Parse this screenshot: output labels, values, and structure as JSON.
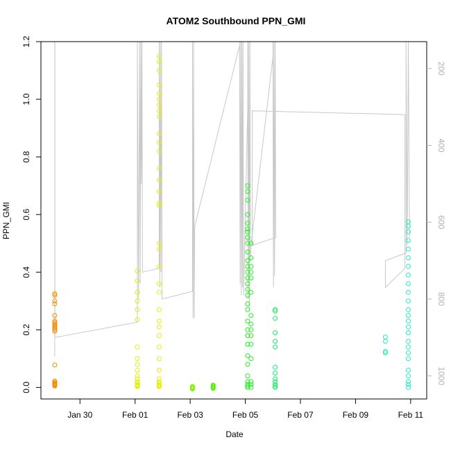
{
  "chart_data": {
    "type": "scatter",
    "title": "ATOM2 Southbound PPN_GMI",
    "xlabel": "Date",
    "ylabel": "PPN_GMI",
    "xlim": [
      "2024-01-28T14:00",
      "2024-02-11T14:00"
    ],
    "ylim": [
      -0.04,
      1.2
    ],
    "yticks": [
      0.0,
      0.2,
      0.4,
      0.6,
      0.8,
      1.0,
      1.2
    ],
    "ytick_labels": [
      "0.0",
      "0.2",
      "0.4",
      "0.6",
      "0.8",
      "1.0",
      "1.2"
    ],
    "xticks": [
      "2024-01-30",
      "2024-02-01",
      "2024-02-03",
      "2024-02-05",
      "2024-02-07",
      "2024-02-09",
      "2024-02-11"
    ],
    "xtick_labels": [
      "Jan 30",
      "Feb 01",
      "Feb 03",
      "Feb 05",
      "Feb 07",
      "Feb 09",
      "Feb 11"
    ],
    "y2_axis": {
      "reversed": true,
      "ylim": [
        130,
        1060
      ],
      "ticks": [
        200,
        400,
        600,
        800,
        1000
      ],
      "tick_labels": [
        "200",
        "400",
        "600",
        "800",
        "1000"
      ],
      "color": "#b0b0b0"
    },
    "series": [
      {
        "color": "#f28c00",
        "x": "2024-01-29T02:00",
        "y": [
          0.005,
          0.008,
          0.01,
          0.012,
          0.015,
          0.018,
          0.022,
          0.078,
          0.195,
          0.2,
          0.205,
          0.21,
          0.215,
          0.22,
          0.225,
          0.23,
          0.25,
          0.29,
          0.3,
          0.32,
          0.325
        ]
      },
      {
        "color": "#ddf200",
        "x": "2024-02-01T02:00",
        "y": [
          0.003,
          0.005,
          0.008,
          0.01,
          0.015,
          0.02,
          0.03,
          0.04,
          0.06,
          0.08,
          0.1,
          0.14,
          0.235,
          0.27,
          0.3,
          0.33,
          0.37,
          0.405
        ]
      },
      {
        "color": "#e6f200",
        "x": "2024-02-01T21:00",
        "y": [
          0.003,
          0.005,
          0.008,
          0.01,
          0.015,
          0.02,
          0.03,
          0.06,
          0.1,
          0.14,
          0.18,
          0.21,
          0.23,
          0.27,
          0.33,
          0.36,
          0.42,
          0.48,
          0.5,
          0.63,
          0.64,
          0.68,
          0.72,
          0.76,
          0.82,
          0.85,
          0.88,
          0.94,
          0.96,
          0.98,
          1.0,
          1.02,
          1.05,
          1.1,
          1.13,
          1.15
        ]
      },
      {
        "color": "#80f000",
        "x": "2024-02-03T02:00",
        "y": [
          -0.005,
          -0.003,
          0.0,
          0.002,
          0.003
        ]
      },
      {
        "color": "#50f000",
        "x": "2024-02-03T20:00",
        "y": [
          -0.003,
          0.0,
          0.002,
          0.005,
          0.008
        ]
      },
      {
        "color": "#20f020",
        "x": "2024-02-05T02:00",
        "y": [
          0.0,
          0.005,
          0.01,
          0.02,
          0.04,
          0.08,
          0.11,
          0.15,
          0.18,
          0.2,
          0.23,
          0.27,
          0.29,
          0.32,
          0.34,
          0.36,
          0.38,
          0.4,
          0.42,
          0.44,
          0.47,
          0.5,
          0.52,
          0.54,
          0.55,
          0.57,
          0.6,
          0.65,
          0.68,
          0.7
        ]
      },
      {
        "color": "#28f028",
        "x": "2024-02-05T05:00",
        "y": [
          0.0,
          0.01,
          0.02,
          0.1,
          0.15,
          0.18,
          0.2,
          0.22,
          0.25,
          0.33,
          0.38,
          0.4,
          0.42,
          0.45,
          0.5
        ]
      },
      {
        "color": "#10f060",
        "x": "2024-02-06T02:00",
        "y": [
          0.0,
          0.005,
          0.01,
          0.02,
          0.03,
          0.05,
          0.07,
          0.14,
          0.16,
          0.19,
          0.24,
          0.265,
          0.27
        ]
      },
      {
        "color": "#20f0b0",
        "x": "2024-02-10T02:00",
        "y": [
          0.12,
          0.125,
          0.16,
          0.175
        ]
      },
      {
        "color": "#20f0c0",
        "x": "2024-02-10T22:00",
        "y": [
          0.0,
          0.01,
          0.02,
          0.04,
          0.06,
          0.1,
          0.12,
          0.14,
          0.16,
          0.19,
          0.21,
          0.23,
          0.25,
          0.27,
          0.3,
          0.33,
          0.36,
          0.39,
          0.42,
          0.45,
          0.48,
          0.51,
          0.54,
          0.56,
          0.575
        ]
      }
    ],
    "gray_line": {
      "color": "#c8c8c8",
      "points": [
        [
          "2024-01-29T02:00",
          950
        ],
        [
          "2024-01-29T02:00",
          130
        ],
        [
          "2024-01-29T02:10",
          130
        ],
        [
          "2024-01-29T02:10",
          900
        ],
        [
          "2024-02-01T02:00",
          860
        ],
        [
          "2024-02-01T02:00",
          130
        ],
        [
          "2024-02-01T03:00",
          800
        ],
        [
          "2024-02-01T04:00",
          130
        ],
        [
          "2024-02-01T04:30",
          760
        ],
        [
          "2024-02-01T05:00",
          130
        ],
        [
          "2024-02-01T05:30",
          500
        ],
        [
          "2024-02-01T06:00",
          130
        ],
        [
          "2024-02-01T06:30",
          730
        ],
        [
          "2024-02-01T21:00",
          720
        ],
        [
          "2024-02-01T21:00",
          130
        ],
        [
          "2024-02-01T21:30",
          770
        ],
        [
          "2024-02-01T22:00",
          130
        ],
        [
          "2024-02-01T22:30",
          730
        ],
        [
          "2024-02-01T23:00",
          130
        ],
        [
          "2024-02-01T23:30",
          800
        ],
        [
          "2024-02-03T02:00",
          780
        ],
        [
          "2024-02-03T02:00",
          130
        ],
        [
          "2024-02-03T02:30",
          850
        ],
        [
          "2024-02-03T03:00",
          130
        ],
        [
          "2024-02-03T03:30",
          850
        ],
        [
          "2024-02-03T04:00",
          610
        ],
        [
          "2024-02-04T19:00",
          140
        ],
        [
          "2024-02-04T19:00",
          130
        ],
        [
          "2024-02-04T19:30",
          760
        ],
        [
          "2024-02-04T20:00",
          130
        ],
        [
          "2024-02-04T20:30",
          790
        ],
        [
          "2024-02-04T21:00",
          130
        ],
        [
          "2024-02-04T21:30",
          770
        ],
        [
          "2024-02-04T22:00",
          130
        ],
        [
          "2024-02-04T22:30",
          790
        ],
        [
          "2024-02-05T02:00",
          310
        ],
        [
          "2024-02-05T02:00",
          130
        ],
        [
          "2024-02-05T02:30",
          800
        ],
        [
          "2024-02-05T03:00",
          130
        ],
        [
          "2024-02-05T03:30",
          830
        ],
        [
          "2024-02-05T04:00",
          130
        ],
        [
          "2024-02-05T04:30",
          700
        ],
        [
          "2024-02-05T05:00",
          660
        ],
        [
          "2024-02-06T00:00",
          170
        ],
        [
          "2024-02-06T00:00",
          130
        ],
        [
          "2024-02-06T00:30",
          770
        ],
        [
          "2024-02-06T01:00",
          130
        ],
        [
          "2024-02-06T01:30",
          740
        ],
        [
          "2024-02-06T02:00",
          130
        ],
        [
          "2024-02-06T02:30",
          640
        ],
        [
          "2024-02-05T06:00",
          660
        ],
        [
          "2024-02-05T06:00",
          310
        ],
        [
          "2024-02-10T19:00",
          320
        ],
        [
          "2024-02-10T19:00",
          720
        ],
        [
          "2024-02-10T02:00",
          770
        ],
        [
          "2024-02-10T02:00",
          700
        ],
        [
          "2024-02-10T20:00",
          680
        ],
        [
          "2024-02-10T20:00",
          130
        ],
        [
          "2024-02-10T21:00",
          660
        ],
        [
          "2024-02-10T22:00",
          130
        ],
        [
          "2024-02-10T23:00",
          640
        ]
      ]
    }
  }
}
